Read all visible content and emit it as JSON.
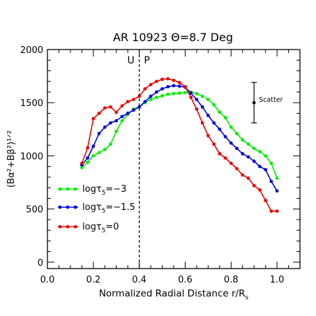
{
  "chart_data": {
    "type": "line",
    "title": "AR 10923 Θ=8.7 Deg",
    "xlabel_main": "Normalized Radial Distance r/R",
    "xlabel_sub": "s",
    "ylabel": "(Bα²+Bβ²)¹ᐟ²",
    "xlim": [
      0.0,
      1.1
    ],
    "ylim": [
      -60,
      2000
    ],
    "xticks": [
      0.0,
      0.2,
      0.4,
      0.6,
      0.8,
      1.0
    ],
    "xtick_labels": [
      "0.0",
      "0.2",
      "0.4",
      "0.6",
      "0.8",
      "1.0"
    ],
    "yticks": [
      0,
      500,
      1000,
      1500,
      2000
    ],
    "ytick_labels": [
      "0",
      "500",
      "1000",
      "1500",
      "2000"
    ],
    "grid": false,
    "legend_position": "lower-left",
    "annotations": {
      "boundary_x": 0.4,
      "umbra_label": "U",
      "penumbra_label": "P",
      "scatter_label": "Scatter",
      "scatter_x": 0.9,
      "scatter_center": 1500,
      "scatter_low": 1310,
      "scatter_high": 1690
    },
    "series": [
      {
        "name": "logτ₅=−3",
        "legend_prefix": "logτ",
        "legend_sub": "5",
        "legend_suffix": "=−3",
        "color": "#00ee00",
        "x": [
          0.15,
          0.175,
          0.2,
          0.225,
          0.25,
          0.275,
          0.3,
          0.325,
          0.35,
          0.375,
          0.4,
          0.425,
          0.45,
          0.475,
          0.5,
          0.525,
          0.55,
          0.575,
          0.6,
          0.625,
          0.65,
          0.675,
          0.7,
          0.725,
          0.75,
          0.775,
          0.8,
          0.825,
          0.85,
          0.875,
          0.9,
          0.925,
          0.95,
          0.975,
          1.0
        ],
        "y": [
          890,
          940,
          1000,
          1030,
          1060,
          1110,
          1230,
          1330,
          1390,
          1440,
          1460,
          1500,
          1530,
          1550,
          1565,
          1580,
          1585,
          1590,
          1595,
          1600,
          1585,
          1560,
          1530,
          1480,
          1410,
          1360,
          1270,
          1210,
          1150,
          1110,
          1070,
          1040,
          1000,
          930,
          790
        ]
      },
      {
        "name": "logτ₅=−1.5",
        "legend_prefix": "logτ",
        "legend_sub": "5",
        "legend_suffix": "=−1.5",
        "color": "#0000dd",
        "x": [
          0.15,
          0.175,
          0.2,
          0.225,
          0.25,
          0.275,
          0.3,
          0.325,
          0.35,
          0.375,
          0.4,
          0.425,
          0.45,
          0.475,
          0.5,
          0.525,
          0.55,
          0.575,
          0.6,
          0.625,
          0.65,
          0.675,
          0.7,
          0.725,
          0.75,
          0.775,
          0.8,
          0.825,
          0.85,
          0.875,
          0.9,
          0.925,
          0.95,
          0.975,
          1.0
        ],
        "y": [
          915,
          980,
          1090,
          1210,
          1270,
          1310,
          1330,
          1370,
          1400,
          1430,
          1460,
          1510,
          1560,
          1600,
          1630,
          1650,
          1660,
          1655,
          1645,
          1590,
          1530,
          1460,
          1380,
          1310,
          1250,
          1180,
          1120,
          1070,
          1020,
          990,
          950,
          900,
          870,
          760,
          670
        ]
      },
      {
        "name": "logτ₅=0",
        "legend_prefix": "logτ",
        "legend_sub": "5",
        "legend_suffix": "=0",
        "color": "#ee0000",
        "x": [
          0.15,
          0.175,
          0.2,
          0.225,
          0.25,
          0.275,
          0.3,
          0.325,
          0.35,
          0.375,
          0.4,
          0.425,
          0.45,
          0.475,
          0.5,
          0.525,
          0.55,
          0.575,
          0.6,
          0.625,
          0.65,
          0.675,
          0.7,
          0.725,
          0.75,
          0.775,
          0.8,
          0.825,
          0.85,
          0.875,
          0.9,
          0.925,
          0.95,
          0.975,
          1.0
        ],
        "y": [
          930,
          1075,
          1350,
          1400,
          1450,
          1460,
          1410,
          1470,
          1510,
          1530,
          1560,
          1630,
          1670,
          1700,
          1720,
          1725,
          1710,
          1690,
          1650,
          1550,
          1440,
          1310,
          1190,
          1110,
          1020,
          980,
          930,
          880,
          820,
          790,
          720,
          680,
          580,
          480,
          480
        ]
      }
    ]
  }
}
